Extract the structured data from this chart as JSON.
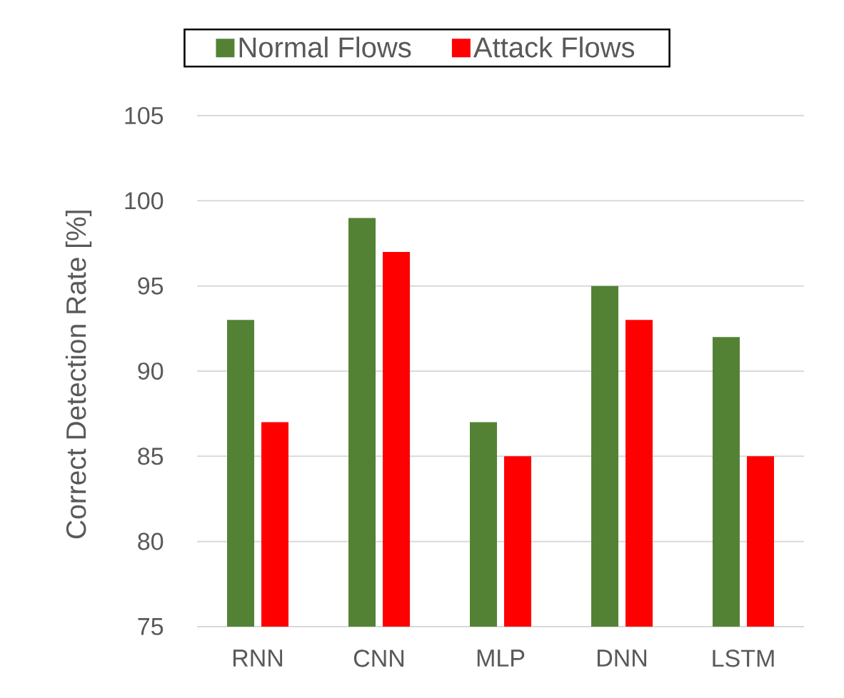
{
  "chart_data": {
    "type": "bar",
    "categories": [
      "RNN",
      "CNN",
      "MLP",
      "DNN",
      "LSTM"
    ],
    "series": [
      {
        "name": "Normal Flows",
        "color": "#548235",
        "values": [
          93,
          99,
          87,
          95,
          92
        ]
      },
      {
        "name": "Attack Flows",
        "color": "#ff0000",
        "values": [
          87,
          97,
          85,
          93,
          85
        ]
      }
    ],
    "ylabel": "Correct Detection Rate [%]",
    "ylim": [
      75,
      105
    ],
    "yticks": [
      75,
      80,
      85,
      90,
      95,
      100,
      105
    ],
    "grid": "y",
    "legend": "top"
  }
}
